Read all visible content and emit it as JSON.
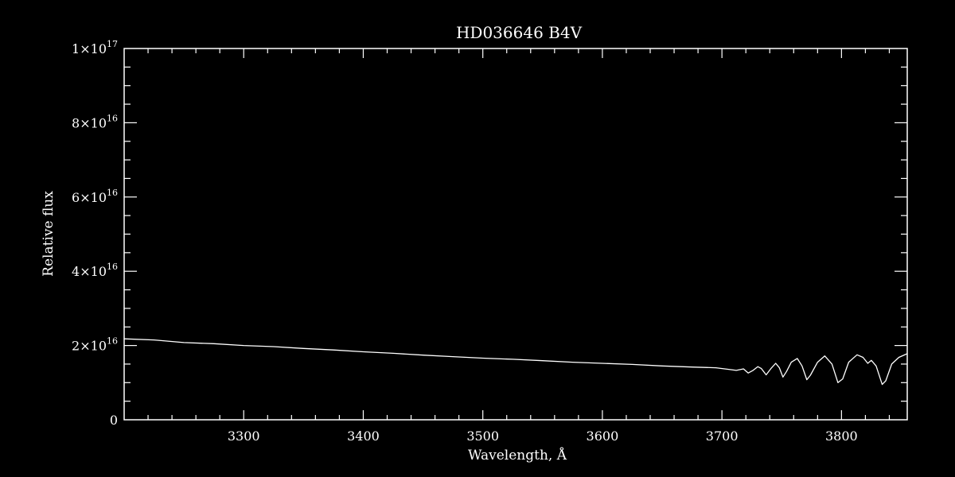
{
  "chart_data": {
    "type": "line",
    "title": "HD036646   B4V",
    "xlabel": "Wavelength, Å",
    "ylabel": "Relative flux",
    "xlim": [
      3200,
      3855
    ],
    "ylim": [
      0,
      1e+17
    ],
    "xticks": [
      {
        "value": 3300,
        "label": "3300"
      },
      {
        "value": 3400,
        "label": "3400"
      },
      {
        "value": 3500,
        "label": "3500"
      },
      {
        "value": 3600,
        "label": "3600"
      },
      {
        "value": 3700,
        "label": "3700"
      },
      {
        "value": 3800,
        "label": "3800"
      }
    ],
    "yticks": [
      {
        "value": 0,
        "mant": "0",
        "exp": ""
      },
      {
        "value": 2e+16,
        "mant": "2×10",
        "exp": "16"
      },
      {
        "value": 4e+16,
        "mant": "4×10",
        "exp": "16"
      },
      {
        "value": 6e+16,
        "mant": "6×10",
        "exp": "16"
      },
      {
        "value": 8e+16,
        "mant": "8×10",
        "exp": "16"
      },
      {
        "value": 1e+17,
        "mant": "1×10",
        "exp": "17"
      }
    ],
    "series": [
      {
        "color": "#ffffff",
        "points": [
          [
            3200,
            2.18e+16
          ],
          [
            3225,
            2.15e+16
          ],
          [
            3250,
            2.08e+16
          ],
          [
            3275,
            2.05e+16
          ],
          [
            3300,
            2e+16
          ],
          [
            3325,
            1.97e+16
          ],
          [
            3350,
            1.92e+16
          ],
          [
            3375,
            1.88e+16
          ],
          [
            3400,
            1.83e+16
          ],
          [
            3425,
            1.79e+16
          ],
          [
            3450,
            1.74e+16
          ],
          [
            3475,
            1.7e+16
          ],
          [
            3500,
            1.66e+16
          ],
          [
            3525,
            1.63e+16
          ],
          [
            3550,
            1.59e+16
          ],
          [
            3575,
            1.55e+16
          ],
          [
            3600,
            1.52e+16
          ],
          [
            3625,
            1.49e+16
          ],
          [
            3650,
            1.45e+16
          ],
          [
            3675,
            1.42e+16
          ],
          [
            3695,
            1.4e+16
          ],
          [
            3705,
            1.36e+16
          ],
          [
            3712,
            1.33e+16
          ],
          [
            3718,
            1.37e+16
          ],
          [
            3722,
            1.26e+16
          ],
          [
            3726,
            1.33e+16
          ],
          [
            3730,
            1.43e+16
          ],
          [
            3733,
            1.38e+16
          ],
          [
            3737,
            1.21e+16
          ],
          [
            3741,
            1.38e+16
          ],
          [
            3745,
            1.52e+16
          ],
          [
            3748,
            1.4e+16
          ],
          [
            3751,
            1.15e+16
          ],
          [
            3754,
            1.3e+16
          ],
          [
            3758,
            1.55e+16
          ],
          [
            3763,
            1.65e+16
          ],
          [
            3767,
            1.45e+16
          ],
          [
            3771,
            1.08e+16
          ],
          [
            3774,
            1.2e+16
          ],
          [
            3780,
            1.55e+16
          ],
          [
            3786,
            1.72e+16
          ],
          [
            3792,
            1.5e+16
          ],
          [
            3797,
            1e+16
          ],
          [
            3801,
            1.1e+16
          ],
          [
            3806,
            1.55e+16
          ],
          [
            3813,
            1.75e+16
          ],
          [
            3818,
            1.68e+16
          ],
          [
            3822,
            1.52e+16
          ],
          [
            3825,
            1.6e+16
          ],
          [
            3829,
            1.45e+16
          ],
          [
            3834,
            9500000000000000.0
          ],
          [
            3837,
            1.05e+16
          ],
          [
            3842,
            1.5e+16
          ],
          [
            3848,
            1.68e+16
          ],
          [
            3855,
            1.78e+16
          ]
        ]
      }
    ]
  }
}
